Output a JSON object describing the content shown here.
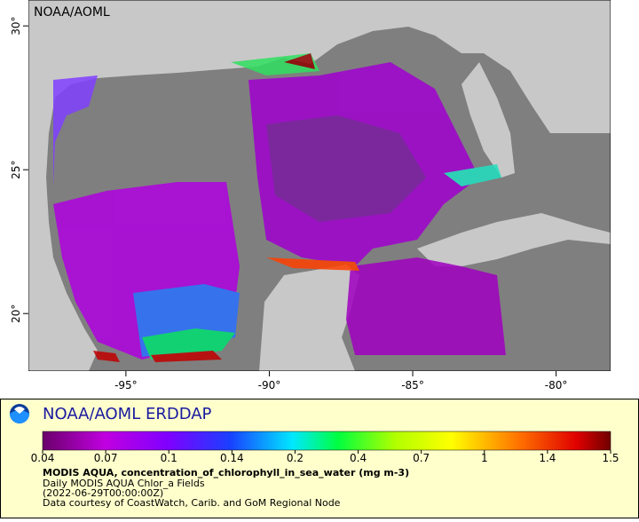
{
  "map": {
    "watermark": "NOAA/AOML",
    "xlim": [
      -98.4,
      -78.1
    ],
    "ylim": [
      18.0,
      30.9
    ],
    "xticks": [
      {
        "value": -95,
        "label": "-95°"
      },
      {
        "value": -90,
        "label": "-90°"
      },
      {
        "value": -85,
        "label": "-85°"
      },
      {
        "value": -80,
        "label": "-80°"
      }
    ],
    "yticks": [
      {
        "value": 20,
        "label": "20°"
      },
      {
        "value": 25,
        "label": "25°"
      },
      {
        "value": 30,
        "label": "30°"
      }
    ]
  },
  "legend": {
    "title": "NOAA/AOML ERDDAP",
    "colorbar_ticks": [
      0.04,
      0.07,
      0.1,
      0.14,
      0.2,
      0.4,
      0.7,
      1,
      1.4,
      1.5
    ],
    "variable": "MODIS AQUA, concentration_of_chlorophyll_in_sea_water (mg m-3)",
    "dataset": "Daily MODIS AQUA Chlor_a Fields",
    "time": "(2022-06-29T00:00:00Z)",
    "credit": "Data courtesy of CoastWatch, Carib. and GoM Regional Node"
  }
}
